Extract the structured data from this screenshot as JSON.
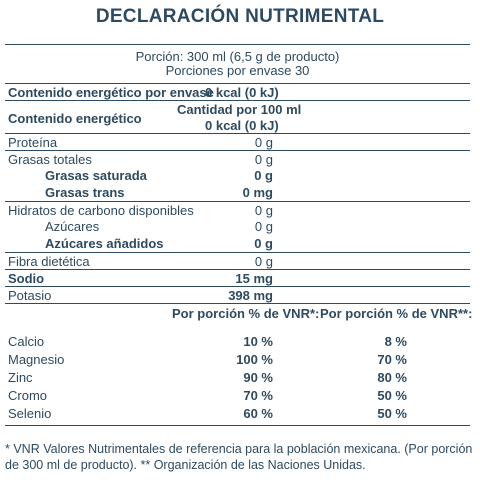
{
  "title": "DECLARACIÓN NUTRIMENTAL",
  "portion": "Porción: 300 ml (6,5 g de producto)",
  "servings": "Porciones por envase 30",
  "energy_per_container": {
    "label": "Contenido energético por envase",
    "value": "0 kcal (0 kJ)"
  },
  "per100_header": "Cantidad por 100 ml",
  "energy": {
    "label": "Contenido energético",
    "value": "0 kcal (0 kJ)"
  },
  "nutrients": [
    {
      "label": "Proteína",
      "value": "0 g"
    },
    {
      "label": "Grasas totales",
      "value": "0 g"
    },
    {
      "label": "Grasas saturada",
      "value": "0 g"
    },
    {
      "label": "Grasas trans",
      "value": "0 mg"
    },
    {
      "label": "Hidratos de carbono disponibles",
      "value": "0 g"
    },
    {
      "label": "Azúcares",
      "value": "0 g"
    },
    {
      "label": "Azúcares añadidos",
      "value": "0 g"
    },
    {
      "label": "Fibra dietética",
      "value": "0 g"
    },
    {
      "label": "Sodio",
      "value": "15 mg"
    },
    {
      "label": "Potasio",
      "value": "398 mg"
    }
  ],
  "vnr_headers": [
    "Por porción % de VNR*:",
    "Por porción % de VNR**:"
  ],
  "minerals": [
    {
      "label": "Calcio",
      "vnr1": "10 %",
      "vnr2": "8 %"
    },
    {
      "label": "Magnesio",
      "vnr1": "100 %",
      "vnr2": "70 %"
    },
    {
      "label": "Zinc",
      "vnr1": "90 %",
      "vnr2": "80 %"
    },
    {
      "label": "Cromo",
      "vnr1": "70 %",
      "vnr2": "50 %"
    },
    {
      "label": "Selenio",
      "vnr1": "60 %",
      "vnr2": "50 %"
    }
  ],
  "footnote": "* VNR Valores Nutrimentales de referencia para la población mexicana. (Por porción de 300 ml de producto). ** Organización de las Naciones Unidas."
}
